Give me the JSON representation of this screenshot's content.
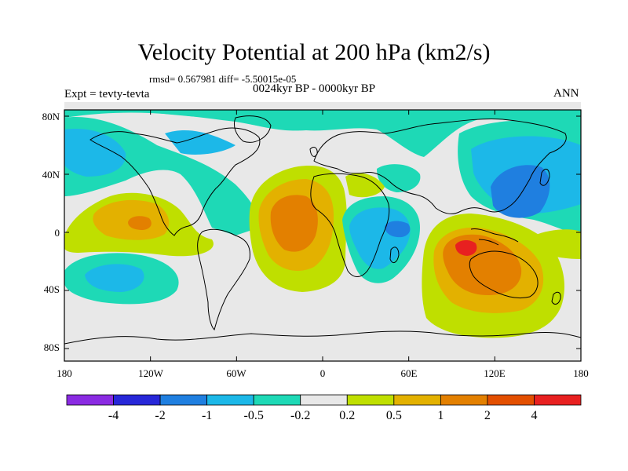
{
  "title": "Velocity Potential at 200 hPa (km2/s)",
  "stats": "rmsd= 0.567981  diff= -5.50015e-05",
  "left_string": "Expt = tevty-tevta",
  "center_string": "0024kyr BP - 0000kyr BP",
  "right_string": "ANN",
  "lat_labels": [
    "80N",
    "40N",
    "0",
    "40S",
    "80S"
  ],
  "lon_labels": [
    "180",
    "120W",
    "60W",
    "0",
    "60E",
    "120E",
    "180"
  ],
  "colorbar": {
    "labels": [
      "-4",
      "-2",
      "-1",
      "-0.5",
      "-0.2",
      "0.2",
      "0.5",
      "1",
      "2",
      "4"
    ],
    "colors": [
      "#8a2be2",
      "#2727d8",
      "#1f7fe0",
      "#1cb8e8",
      "#1ed9b6",
      "#e8e8e8",
      "#bfdf00",
      "#e3b100",
      "#e38000",
      "#e34f00",
      "#e82020"
    ]
  },
  "palette": {
    "neutral": "#e8e8e8",
    "teal": "#1ed9b6",
    "cyan": "#1cb8e8",
    "blue": "#1f7fe0",
    "lime": "#bfdf00",
    "amber": "#e3b100",
    "orange": "#e38000",
    "red_orange": "#e34f00",
    "red": "#e82020"
  }
}
